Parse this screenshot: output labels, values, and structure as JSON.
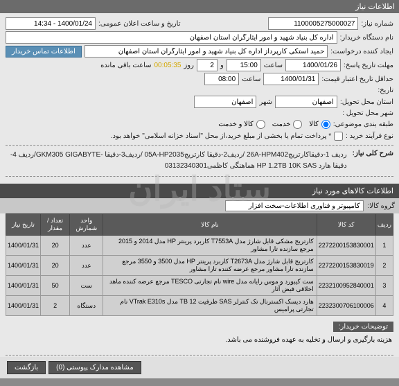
{
  "header": {
    "title": "اطلاعات نیاز"
  },
  "row1": {
    "need_no_label": "شماره نیاز:",
    "need_no": "1100005275000027",
    "announce_label": "تاریخ و ساعت اعلان عمومی:",
    "announce_dt": "1400/01/24 - 14:34"
  },
  "row2": {
    "org_label": "نام دستگاه خریدار:",
    "org": "اداره کل بنیاد شهید و امور ایثارگران استان اصفهان"
  },
  "row3": {
    "creator_label": "ایجاد کننده درخواست:",
    "creator": "حمید استکی کارپرداز اداره کل بنیاد شهید و امور ایثارگران استان اصفهان",
    "contact_btn": "اطلاعات تماس خریدار"
  },
  "row4": {
    "deadline_label": "مهلت تاریخ پاسخ:",
    "date": "1400/01/26",
    "time_label": "ساعت",
    "time": "15:00",
    "sep": "و",
    "days": "2",
    "days_label": "روز",
    "timer": "00:05:35",
    "remain_label": "ساعت باقی مانده"
  },
  "row5": {
    "valid_label": "حداقل تاریخ اعتبار قیمت:",
    "date": "1400/01/31",
    "time_label": "ساعت",
    "time": "08:00"
  },
  "row6_label": "تاریخ:",
  "row7": {
    "delivery_label": "استان محل تحویل:",
    "province": "اصفهان",
    "city_label": "شهر",
    "city": "اصفهان"
  },
  "row8": {
    "city_code_label": "شهر محل تحویل :"
  },
  "row9": {
    "label": "طبقه بندی موضوعی:",
    "opt_goods": "کالا",
    "opt_service": "خدمت",
    "opt_both": "کالا و خدمت"
  },
  "row10": {
    "label": "نوع فرآیند خرید :",
    "note": "* پرداخت تمام یا بخشی از مبلغ خرید،از محل \"اسناد خزانه اسلامی\" خواهد بود."
  },
  "row11": {
    "label": "شرح کلی نیاز:",
    "text": "ردیف 1-دقیقاکارتریج26A-HPM402 /ردیف2-دقیقا کارتریج05A-HP2035 /ردیف3-دقیقا -GKM305 GIGABYTE/ردیف 4-دقیقا هارد HP 1.2TB 10K SAS هماهنگی کاظمی03132340301"
  },
  "section2": {
    "title": "اطلاعات کالاهای مورد نیاز"
  },
  "group": {
    "label": "گروه کالا:",
    "value": "کامپیوتر و فناوری اطلاعات-سخت افزار"
  },
  "table": {
    "headers": [
      "ردیف",
      "کد کالا",
      "نام کالا",
      "واحد شمارش",
      "تعداد / مقدار",
      "تاریخ نیاز"
    ],
    "rows": [
      [
        "1",
        "2272200153830001",
        "کارتریج مشکی قابل شارژ مدل T7553A کاربرد پرینتر HP مدل 2014 و 2015 مرجع سازنده تارا مشاور",
        "عدد",
        "20",
        "1400/01/31"
      ],
      [
        "2",
        "2272200153830019",
        "کارتریج قابل شارژ مدل T2673A کاربرد پرینتر HP مدل 3500 و 3550 مرجع سازنده تارا مشاور مرجع عرضه کننده تارا مشاور",
        "عدد",
        "20",
        "1400/01/31"
      ],
      [
        "3",
        "2232100952840001",
        "ست کیبورد و موس رایانه مدل wire نام تجارتی TESCO مرجع عرضه کننده ماهد اخلاقی فیض آثار",
        "ست",
        "50",
        "1400/01/31"
      ],
      [
        "4",
        "2232300706100006",
        "هارد دیسک اکسترنال تک کنترلر SAS ظرفیت TB 12 مدل VTrak E310s نام تجارتی پرامیس",
        "دستگاه",
        "2",
        "1400/01/31"
      ]
    ]
  },
  "buyer_desc": {
    "label": "توضیحات خریدار:",
    "text": "هزینه بارگیری و ارسال و تخلیه به عهده فروشنده می باشد."
  },
  "footer": {
    "attach_btn": "مشاهده مدارک پیوستی (0)",
    "back_btn": "بازگشت"
  },
  "watermark": "ستاد ایران"
}
